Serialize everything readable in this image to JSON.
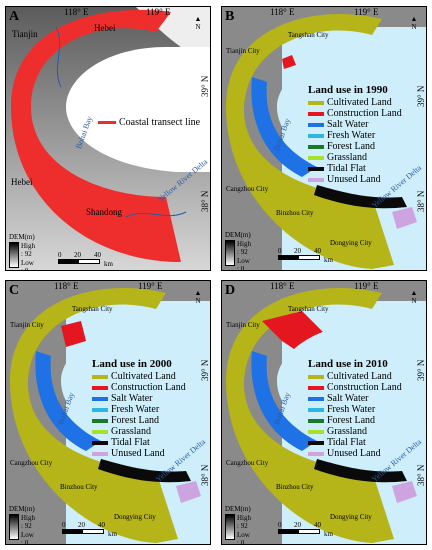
{
  "colors": {
    "cultivated": "#b5b418",
    "construction": "#e4161f",
    "salt_water": "#1f72e6",
    "fresh_water": "#2cb6e3",
    "forest": "#167a28",
    "grassland": "#a6e22a",
    "tidal_flat": "#0a0a0a",
    "unused": "#cda4e0",
    "sea": "#cdeefa",
    "transect": "#ee2d2d"
  },
  "panel_a": {
    "label": "A",
    "lon1": "118° E",
    "lon2": "119° E",
    "lat1": "39° N",
    "lat2": "38° N",
    "places": {
      "hebei_n": "Hebei",
      "tianjin": "Tianjin",
      "hebei_s": "Hebei",
      "shandong": "Shandong"
    },
    "bay": "Bohai Bay",
    "river": "Yellow River Delta",
    "legend_line": "Coastal transect line",
    "dem_title": "DEM(m)",
    "dem_high": "High : 92",
    "dem_low": "Low : 0",
    "scale_ticks": [
      "0",
      "20",
      "40"
    ],
    "scale_unit": "km",
    "north": "N"
  },
  "panel_b": {
    "label": "B",
    "lon1": "118° E",
    "lon2": "119° E",
    "lat1": "39° N",
    "lat2": "38° N",
    "cities": {
      "tangshan": "Tangshan City",
      "tianjin": "Tianjin City",
      "cangzhou": "Cangzhou City",
      "binzhou": "Binzhou City",
      "dongying": "Dongying City"
    },
    "bay": "Bohai Bay",
    "river": "Yellow River Delta",
    "legend_title": "Land use in 1990",
    "dem_title": "DEM(m)",
    "dem_high": "High : 92",
    "dem_low": "Low : 0",
    "scale_ticks": [
      "0",
      "20",
      "40"
    ],
    "scale_unit": "km",
    "north": "N"
  },
  "panel_c": {
    "label": "C",
    "lon1": "118° E",
    "lon2": "119° E",
    "lat1": "39° N",
    "lat2": "38° N",
    "cities": {
      "tangshan": "Tangshan City",
      "tianjin": "Tianjin City",
      "cangzhou": "Cangzhou City",
      "binzhou": "Binzhou City",
      "dongying": "Dongying City"
    },
    "bay": "Bohai Bay",
    "river": "Yellow River Delta",
    "legend_title": "Land use in 2000",
    "dem_title": "DEM(m)",
    "dem_high": "High : 92",
    "dem_low": "Low : 0",
    "scale_ticks": [
      "0",
      "20",
      "40"
    ],
    "scale_unit": "km",
    "north": "N"
  },
  "panel_d": {
    "label": "D",
    "lon1": "118° E",
    "lon2": "119° E",
    "lat1": "39° N",
    "lat2": "38° N",
    "cities": {
      "tangshan": "Tangshan City",
      "tianjin": "Tianjin City",
      "cangzhou": "Cangzhou City",
      "binzhou": "Binzhou City",
      "dongying": "Dongying City"
    },
    "bay": "Bohai Bay",
    "river": "Yellow River Delta",
    "legend_title": "Land use in 2010",
    "dem_title": "DEM(m)",
    "dem_high": "High : 92",
    "dem_low": "Low : 0",
    "scale_ticks": [
      "0",
      "20",
      "40"
    ],
    "scale_unit": "km",
    "north": "N"
  },
  "land_use_classes": [
    "Cultivated Land",
    "Construction Land",
    "Salt Water",
    "Fresh Water",
    "Forest Land",
    "Grassland",
    "Tidal Flat",
    "Unused Land"
  ]
}
